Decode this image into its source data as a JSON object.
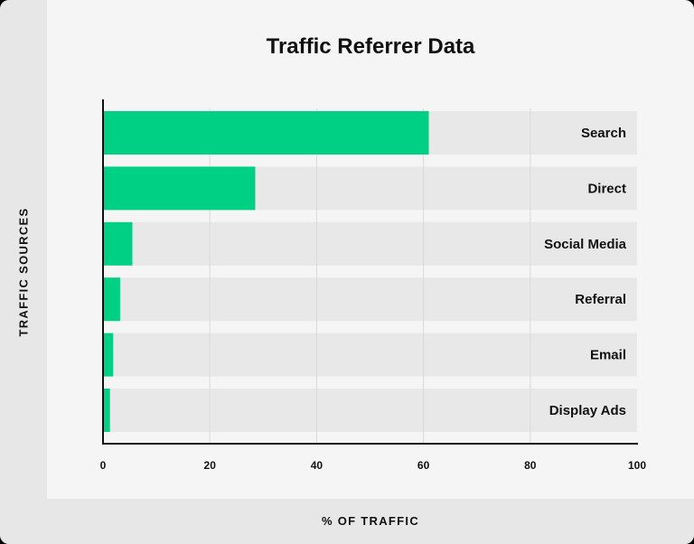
{
  "chart_data": {
    "type": "bar",
    "orientation": "horizontal",
    "title": "Traffic Referrer Data",
    "xlabel": "% OF TRAFFIC",
    "ylabel": "TRAFFIC SOURCES",
    "categories": [
      "Search",
      "Direct",
      "Social Media",
      "Referral",
      "Email",
      "Display Ads"
    ],
    "values": [
      61,
      28.5,
      5.5,
      3.2,
      1.9,
      1.3
    ],
    "xlim": [
      0,
      100
    ],
    "xticks": [
      0,
      20,
      40,
      60,
      80,
      100
    ],
    "grid": true,
    "colors": {
      "bar": "#00d084",
      "track": "#e8e8e8",
      "grid": "#d9d9d9",
      "axis": "#111111",
      "text": "#111111"
    }
  }
}
